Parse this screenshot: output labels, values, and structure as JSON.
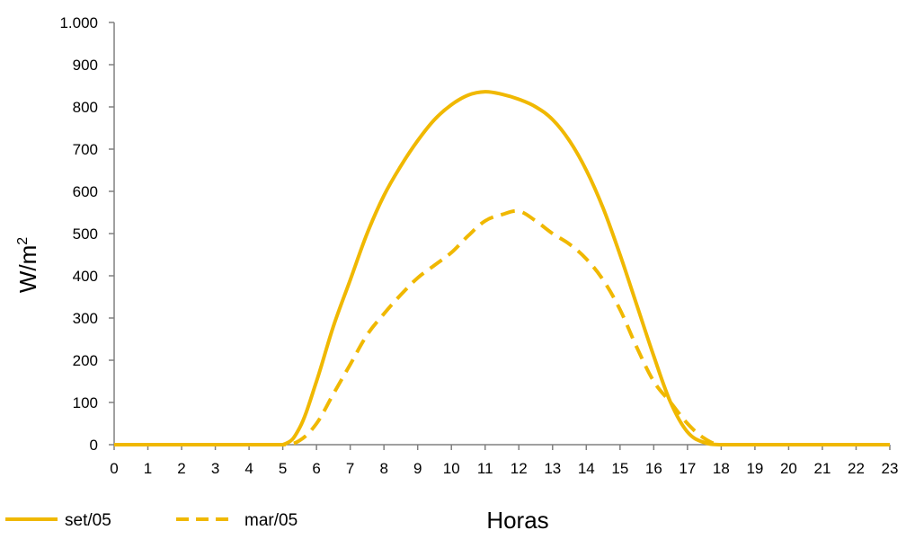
{
  "chart_data": {
    "type": "line",
    "xlabel": "Horas",
    "ylabel": "W/m",
    "ylabel_superscript": "2",
    "xlim": [
      0,
      23
    ],
    "ylim": [
      0,
      1000
    ],
    "x_ticks": [
      0,
      1,
      2,
      3,
      4,
      5,
      6,
      7,
      8,
      9,
      10,
      11,
      12,
      13,
      14,
      15,
      16,
      17,
      18,
      19,
      20,
      21,
      22,
      23
    ],
    "x_tick_labels": [
      "0",
      "1",
      "2",
      "3",
      "4",
      "5",
      "6",
      "7",
      "8",
      "9",
      "10",
      "11",
      "12",
      "13",
      "14",
      "15",
      "16",
      "17",
      "18",
      "19",
      "20",
      "21",
      "22",
      "23"
    ],
    "y_ticks": [
      0,
      100,
      200,
      300,
      400,
      500,
      600,
      700,
      800,
      900,
      1000
    ],
    "y_tick_labels": [
      "0",
      "100",
      "200",
      "300",
      "400",
      "500",
      "600",
      "700",
      "800",
      "900",
      "1.000"
    ],
    "grid": false,
    "legend_position": "bottom-left",
    "series": [
      {
        "name": "set/05",
        "style": "solid",
        "color": "#f0b800",
        "points": [
          [
            0,
            0
          ],
          [
            1,
            0
          ],
          [
            2,
            0
          ],
          [
            3,
            0
          ],
          [
            4,
            0
          ],
          [
            5,
            0
          ],
          [
            5.5,
            40
          ],
          [
            6,
            150
          ],
          [
            6.5,
            280
          ],
          [
            7,
            390
          ],
          [
            7.5,
            500
          ],
          [
            8,
            590
          ],
          [
            8.5,
            660
          ],
          [
            9,
            720
          ],
          [
            9.5,
            770
          ],
          [
            10,
            805
          ],
          [
            10.5,
            828
          ],
          [
            11,
            836
          ],
          [
            11.5,
            830
          ],
          [
            12,
            818
          ],
          [
            12.5,
            800
          ],
          [
            13,
            770
          ],
          [
            13.5,
            720
          ],
          [
            14,
            650
          ],
          [
            14.5,
            560
          ],
          [
            15,
            450
          ],
          [
            15.5,
            330
          ],
          [
            16,
            210
          ],
          [
            16.5,
            100
          ],
          [
            17,
            30
          ],
          [
            17.5,
            5
          ],
          [
            18,
            0
          ],
          [
            19,
            0
          ],
          [
            20,
            0
          ],
          [
            21,
            0
          ],
          [
            22,
            0
          ],
          [
            23,
            0
          ]
        ]
      },
      {
        "name": "mar/05",
        "style": "dashed",
        "color": "#f0b800",
        "points": [
          [
            0,
            0
          ],
          [
            1,
            0
          ],
          [
            2,
            0
          ],
          [
            3,
            0
          ],
          [
            4,
            0
          ],
          [
            5,
            0
          ],
          [
            5.5,
            10
          ],
          [
            6,
            50
          ],
          [
            6.5,
            120
          ],
          [
            7,
            190
          ],
          [
            7.5,
            260
          ],
          [
            8,
            310
          ],
          [
            8.5,
            355
          ],
          [
            9,
            395
          ],
          [
            9.5,
            425
          ],
          [
            10,
            455
          ],
          [
            10.5,
            495
          ],
          [
            11,
            530
          ],
          [
            11.5,
            545
          ],
          [
            12,
            553
          ],
          [
            12.5,
            530
          ],
          [
            13,
            500
          ],
          [
            13.5,
            475
          ],
          [
            14,
            440
          ],
          [
            14.5,
            390
          ],
          [
            15,
            320
          ],
          [
            15.5,
            230
          ],
          [
            16,
            150
          ],
          [
            16.5,
            100
          ],
          [
            17,
            50
          ],
          [
            17.5,
            15
          ],
          [
            18,
            0
          ],
          [
            19,
            0
          ],
          [
            20,
            0
          ],
          [
            21,
            0
          ],
          [
            22,
            0
          ],
          [
            23,
            0
          ]
        ]
      }
    ]
  }
}
